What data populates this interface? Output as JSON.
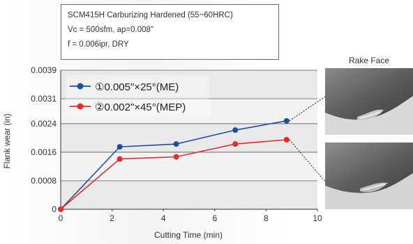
{
  "conditions": {
    "line1": "SCM415H Carburizing Hardened (55~60HRC)",
    "line2": "Vc = 500sfm, ap=0.008\"",
    "line3": "f = 0.006ipr, DRY"
  },
  "photos": {
    "title": "Rake Face"
  },
  "chart_data": {
    "type": "line",
    "xlabel": "Cutting Time (min)",
    "ylabel": "Flank wear (in)",
    "xlim": [
      0,
      10
    ],
    "ylim": [
      0,
      0.0039
    ],
    "x_ticks": [
      "0",
      "2",
      "4",
      "6",
      "8",
      "10"
    ],
    "y_ticks": [
      "0",
      "0.0008",
      "0.0016",
      "0.0024",
      "0.0031",
      "0.0039"
    ],
    "grid": "horizontal",
    "legend_position": "top-left",
    "series": [
      {
        "name": "①0.005\"×25°(ME)",
        "color": "#1a4fa3",
        "x": [
          0,
          2.3,
          4.5,
          6.8,
          8.8
        ],
        "y": [
          0,
          0.00175,
          0.00183,
          0.00222,
          0.00248
        ]
      },
      {
        "name": "②0.002\"×45°(MEP)",
        "color": "#e52b2b",
        "x": [
          0,
          2.3,
          4.5,
          6.8,
          8.8
        ],
        "y": [
          0,
          0.00141,
          0.00147,
          0.00183,
          0.00195
        ]
      }
    ]
  }
}
